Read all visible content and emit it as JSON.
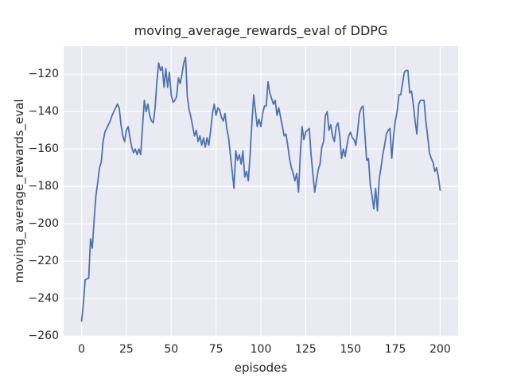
{
  "title": "moving_average_rewards_eval of DDPG",
  "chart_data": {
    "type": "line",
    "title": "moving_average_rewards_eval of DDPG",
    "xlabel": "episodes",
    "ylabel": "moving_average_rewards_eval",
    "grid": true,
    "legend": "none",
    "background_color": "#eaeaf2",
    "grid_color": "#ffffff",
    "line_color": "#4c72b0",
    "text_color": "#262626",
    "xlim": [
      -10,
      210
    ],
    "ylim": [
      -260.3,
      -105
    ],
    "x_ticks": [
      0,
      25,
      50,
      75,
      100,
      125,
      150,
      175,
      200
    ],
    "x_tick_labels": [
      "0",
      "25",
      "50",
      "75",
      "100",
      "125",
      "150",
      "175",
      "200"
    ],
    "y_ticks": [
      -120,
      -140,
      -160,
      -180,
      -200,
      -220,
      -240,
      -260
    ],
    "y_tick_labels": [
      "−120",
      "−140",
      "−160",
      "−180",
      "−200",
      "−220",
      "−240",
      "−260"
    ],
    "series": [
      {
        "name": "moving_average_rewards_eval",
        "x_start": 0,
        "x_step": 1,
        "values": [
          -252,
          -243,
          -230,
          -229.5,
          -229,
          -208,
          -213,
          -198,
          -185,
          -178,
          -170,
          -167,
          -156,
          -151,
          -149,
          -147,
          -145,
          -142,
          -140,
          -138,
          -136,
          -138,
          -147,
          -153,
          -156,
          -150,
          -148,
          -154,
          -159,
          -162,
          -160,
          -163,
          -160,
          -163,
          -148,
          -134,
          -140,
          -136,
          -142,
          -145,
          -146,
          -138,
          -124,
          -114,
          -118,
          -116,
          -127,
          -117,
          -127,
          -119,
          -131,
          -135,
          -134,
          -132,
          -122,
          -125,
          -120,
          -114,
          -111,
          -132,
          -139,
          -143,
          -148,
          -153,
          -150,
          -156,
          -153,
          -158,
          -154,
          -159,
          -154,
          -158,
          -150,
          -141,
          -136,
          -142,
          -138,
          -139,
          -143,
          -145,
          -141,
          -149,
          -154,
          -163,
          -172,
          -181,
          -161,
          -166,
          -163,
          -168,
          -161,
          -175,
          -172,
          -177,
          -163,
          -146,
          -131,
          -140,
          -148,
          -144,
          -148,
          -141,
          -137,
          -137,
          -124,
          -130,
          -133,
          -136,
          -134,
          -142,
          -138,
          -143,
          -148,
          -153,
          -152,
          -158,
          -165,
          -170,
          -173,
          -177,
          -173,
          -183,
          -163,
          -148,
          -155,
          -151,
          -150,
          -149,
          -163,
          -173,
          -183,
          -177,
          -171,
          -168,
          -159,
          -156,
          -142,
          -140,
          -150,
          -147,
          -153,
          -156,
          -148,
          -146,
          -153,
          -165,
          -160,
          -164,
          -158,
          -153,
          -151,
          -154,
          -155,
          -158,
          -150,
          -141,
          -138,
          -137,
          -152,
          -166,
          -165,
          -179,
          -185,
          -192,
          -181,
          -193,
          -176,
          -170,
          -163,
          -158,
          -152,
          -150,
          -149,
          -165,
          -153,
          -145,
          -140,
          -131,
          -131,
          -125,
          -119,
          -118,
          -118,
          -130,
          -129,
          -136,
          -145,
          -152,
          -136,
          -134,
          -134,
          -134,
          -145,
          -153,
          -162,
          -165,
          -167,
          -172,
          -170,
          -175,
          -182
        ]
      }
    ]
  }
}
